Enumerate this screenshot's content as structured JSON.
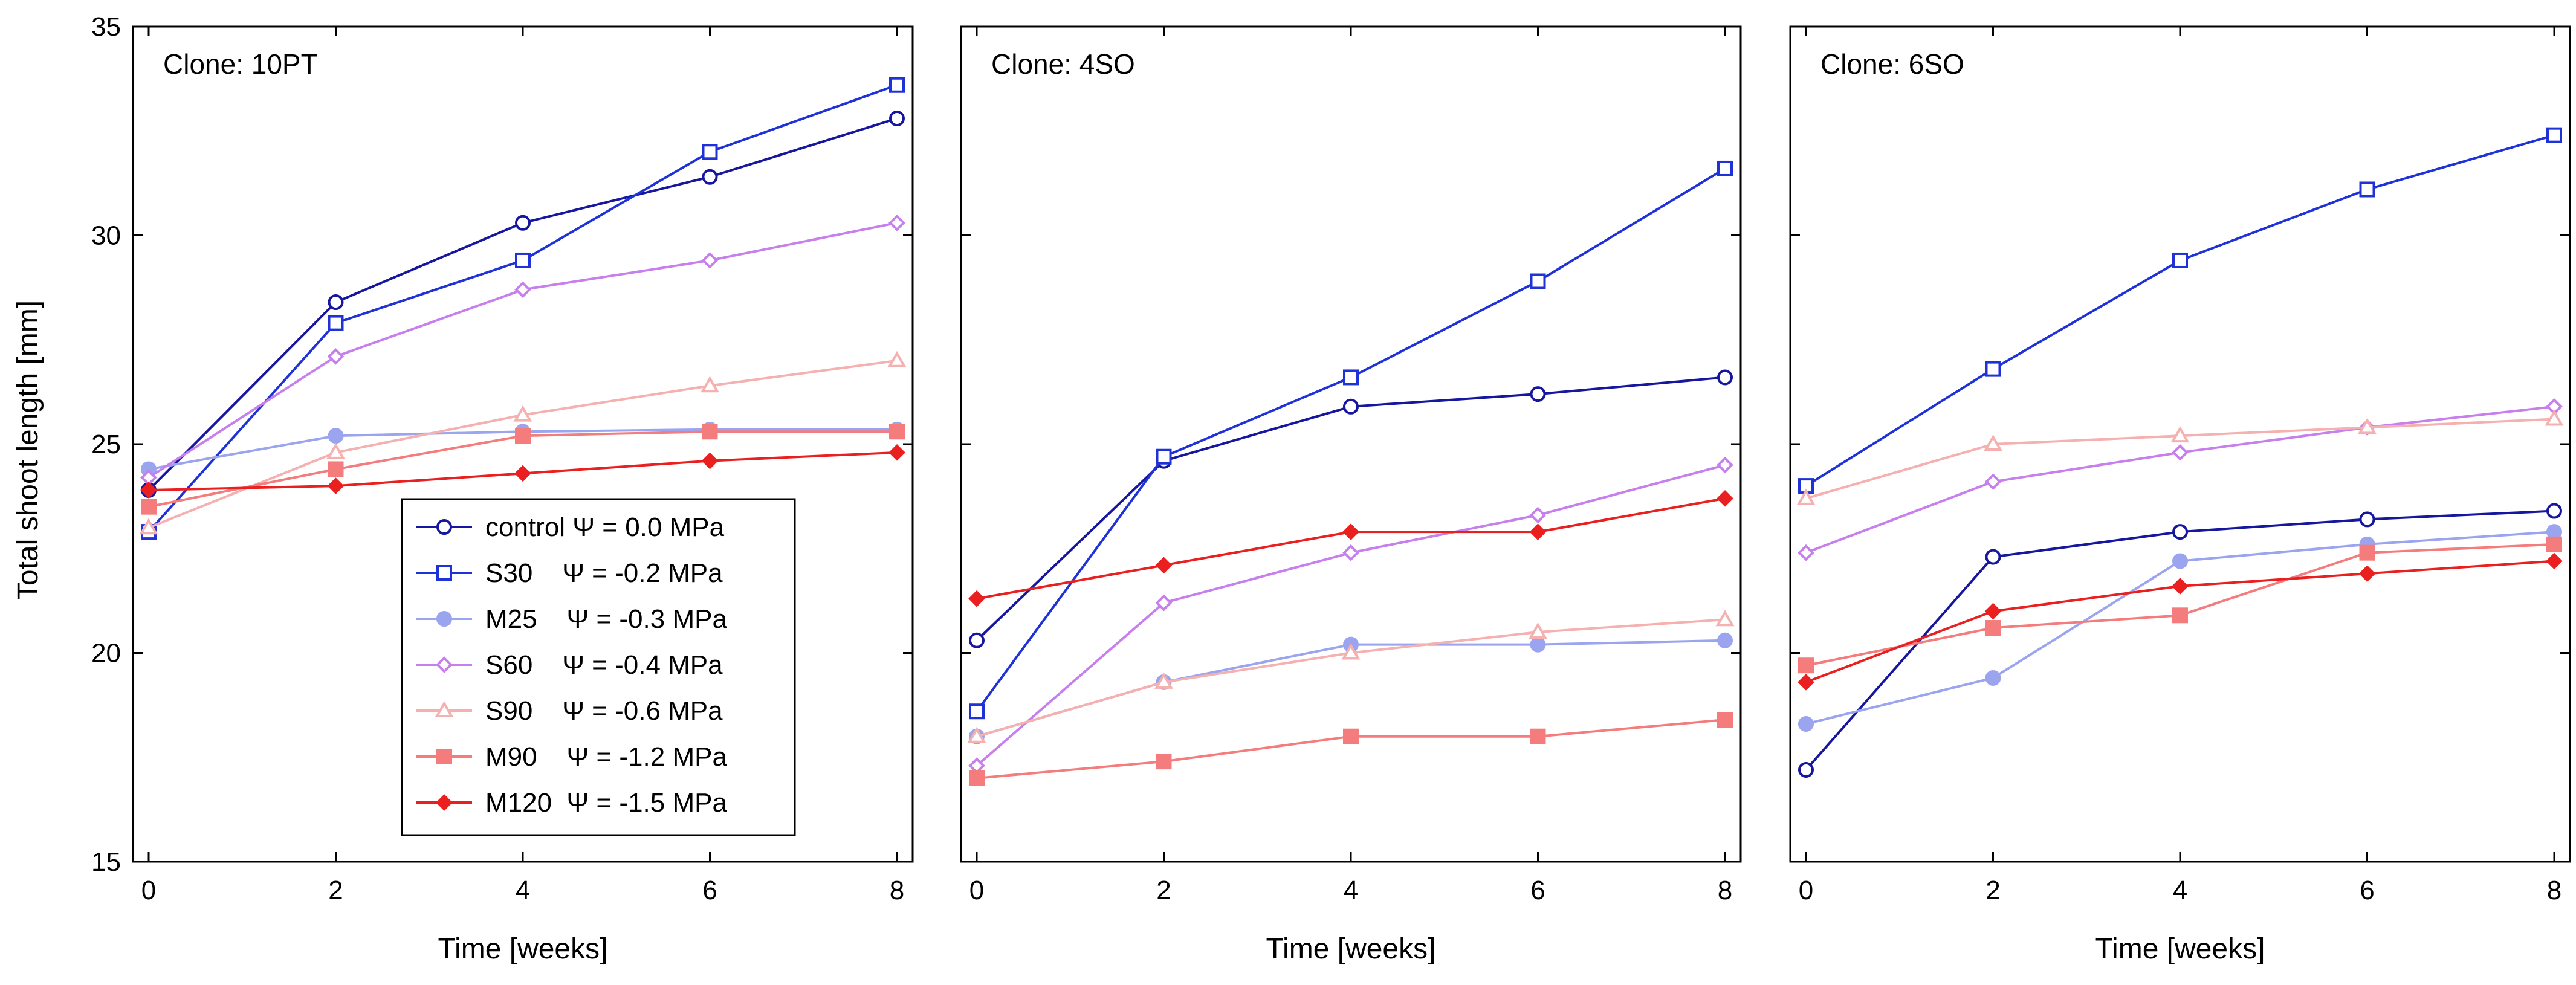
{
  "chart_data": [
    {
      "type": "line",
      "title": "Clone: 10PT",
      "xlabel": "Time [weeks]",
      "ylabel": "Total shoot length [mm]",
      "x": [
        0,
        2,
        4,
        6,
        8
      ],
      "xlim": [
        0,
        8
      ],
      "ylim": [
        15,
        35
      ],
      "xticks": [
        0,
        2,
        4,
        6,
        8
      ],
      "yticks": [
        15,
        20,
        25,
        30,
        35
      ],
      "series": [
        {
          "name": "control",
          "values": [
            23.9,
            28.4,
            30.3,
            31.4,
            32.8
          ]
        },
        {
          "name": "S30",
          "values": [
            22.9,
            27.9,
            29.4,
            32.0,
            33.6
          ]
        },
        {
          "name": "M25",
          "values": [
            24.4,
            25.2,
            25.3,
            25.35,
            25.35
          ]
        },
        {
          "name": "S60",
          "values": [
            24.2,
            27.1,
            28.7,
            29.4,
            30.3
          ]
        },
        {
          "name": "S90",
          "values": [
            23.0,
            24.8,
            25.7,
            26.4,
            27.0
          ]
        },
        {
          "name": "M90",
          "values": [
            23.5,
            24.4,
            25.2,
            25.3,
            25.3
          ]
        },
        {
          "name": "M120",
          "values": [
            23.9,
            24.0,
            24.3,
            24.6,
            24.8
          ]
        }
      ]
    },
    {
      "type": "line",
      "title": "Clone: 4SO",
      "xlabel": "Time [weeks]",
      "ylabel": "",
      "x": [
        0,
        2,
        4,
        6,
        8
      ],
      "xlim": [
        0,
        8
      ],
      "ylim": [
        15,
        35
      ],
      "xticks": [
        0,
        2,
        4,
        6,
        8
      ],
      "yticks": [
        15,
        20,
        25,
        30,
        35
      ],
      "series": [
        {
          "name": "control",
          "values": [
            20.3,
            24.6,
            25.9,
            26.2,
            26.6
          ]
        },
        {
          "name": "S30",
          "values": [
            18.6,
            24.7,
            26.6,
            28.9,
            31.6
          ]
        },
        {
          "name": "M25",
          "values": [
            18.0,
            19.3,
            20.2,
            20.2,
            20.3
          ]
        },
        {
          "name": "S60",
          "values": [
            17.3,
            21.2,
            22.4,
            23.3,
            24.5
          ]
        },
        {
          "name": "S90",
          "values": [
            18.0,
            19.3,
            20.0,
            20.5,
            20.8
          ]
        },
        {
          "name": "M90",
          "values": [
            17.0,
            17.4,
            18.0,
            18.0,
            18.4
          ]
        },
        {
          "name": "M120",
          "values": [
            21.3,
            22.1,
            22.9,
            22.9,
            23.7
          ]
        }
      ]
    },
    {
      "type": "line",
      "title": "Clone: 6SO",
      "xlabel": "Time [weeks]",
      "ylabel": "",
      "x": [
        0,
        2,
        4,
        6,
        8
      ],
      "xlim": [
        0,
        8
      ],
      "ylim": [
        15,
        35
      ],
      "xticks": [
        0,
        2,
        4,
        6,
        8
      ],
      "yticks": [
        15,
        20,
        25,
        30,
        35
      ],
      "series": [
        {
          "name": "control",
          "values": [
            17.2,
            22.3,
            22.9,
            23.2,
            23.4
          ]
        },
        {
          "name": "S30",
          "values": [
            24.0,
            26.8,
            29.4,
            31.1,
            32.4
          ]
        },
        {
          "name": "M25",
          "values": [
            18.3,
            19.4,
            22.2,
            22.6,
            22.9
          ]
        },
        {
          "name": "S60",
          "values": [
            22.4,
            24.1,
            24.8,
            25.4,
            25.9
          ]
        },
        {
          "name": "S90",
          "values": [
            23.7,
            25.0,
            25.2,
            25.4,
            25.6
          ]
        },
        {
          "name": "M90",
          "values": [
            19.7,
            20.6,
            20.9,
            22.4,
            22.6
          ]
        },
        {
          "name": "M120",
          "values": [
            19.3,
            21.0,
            21.6,
            21.9,
            22.2
          ]
        }
      ]
    }
  ],
  "legend": {
    "placement": "lower-right of first panel",
    "entries": [
      {
        "series": "control",
        "label": "control Ψ = 0.0 MPa",
        "color": "#16169e",
        "marker": "open-circle"
      },
      {
        "series": "S30",
        "label": "S30    Ψ = -0.2 MPa",
        "color": "#1f32d8",
        "marker": "open-square"
      },
      {
        "series": "M25",
        "label": "M25    Ψ = -0.3 MPa",
        "color": "#9ba4ee",
        "marker": "filled-circle"
      },
      {
        "series": "S60",
        "label": "S60    Ψ = -0.4 MPa",
        "color": "#c77fee",
        "marker": "open-diamond"
      },
      {
        "series": "S90",
        "label": "S90    Ψ = -0.6 MPa",
        "color": "#f5b0b0",
        "marker": "open-triangle"
      },
      {
        "series": "M90",
        "label": "M90    Ψ = -1.2 MPa",
        "color": "#f47c7c",
        "marker": "filled-square"
      },
      {
        "series": "M120",
        "label": "M120  Ψ = -1.5 MPa",
        "color": "#ea1f1f",
        "marker": "filled-diamond"
      }
    ]
  }
}
